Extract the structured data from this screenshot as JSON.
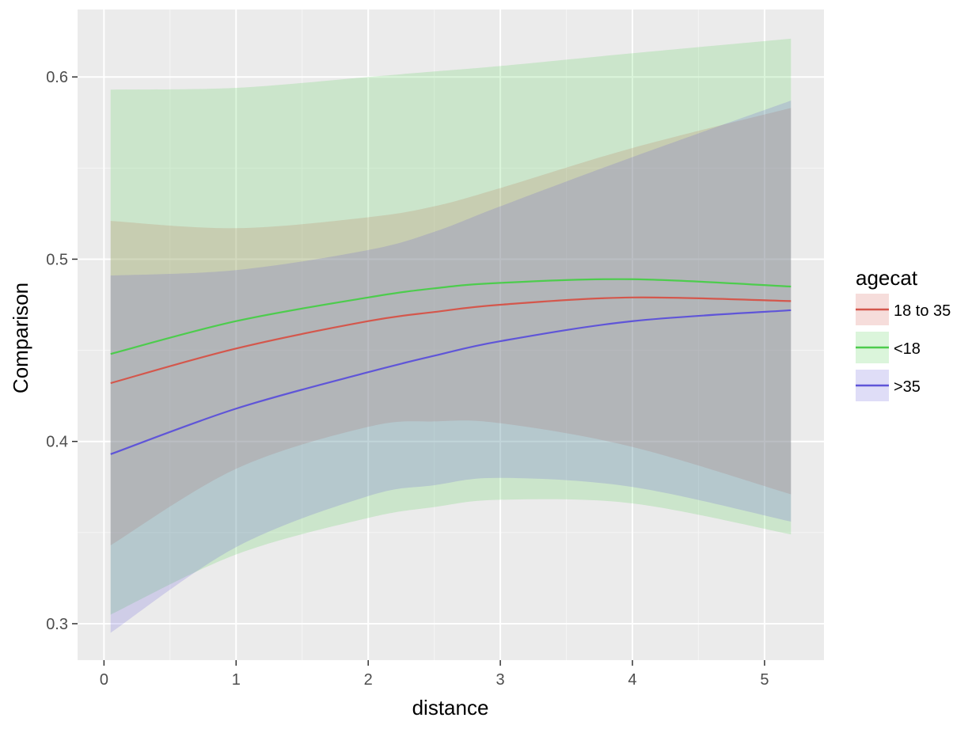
{
  "chart_data": {
    "type": "line",
    "xlabel": "distance",
    "ylabel": "Comparison",
    "xlim": [
      -0.2,
      5.45
    ],
    "ylim": [
      0.28,
      0.637
    ],
    "x_ticks": [
      0,
      1,
      2,
      3,
      4,
      5
    ],
    "x_tick_labels": [
      "0",
      "1",
      "2",
      "3",
      "4",
      "5"
    ],
    "y_ticks": [
      0.3,
      0.4,
      0.5,
      0.6
    ],
    "y_tick_labels": [
      "0.3",
      "0.4",
      "0.5",
      "0.6"
    ],
    "grid": true,
    "legend": {
      "title": "agecat",
      "placement": "right"
    },
    "x": [
      0.05,
      1,
      2,
      2.5,
      3,
      4,
      5.2
    ],
    "series": [
      {
        "name": "18 to 35",
        "color": "#d4574c",
        "values": [
          0.432,
          0.451,
          0.466,
          0.471,
          0.475,
          0.479,
          0.477
        ],
        "band_upper": [
          0.521,
          0.517,
          0.523,
          0.529,
          0.539,
          0.561,
          0.583
        ],
        "band_lower": [
          0.343,
          0.385,
          0.408,
          0.411,
          0.41,
          0.397,
          0.371
        ]
      },
      {
        "name": "<18",
        "color": "#4dcc4d",
        "values": [
          0.448,
          0.466,
          0.479,
          0.484,
          0.487,
          0.489,
          0.485
        ],
        "band_upper": [
          0.593,
          0.594,
          0.6,
          0.603,
          0.606,
          0.613,
          0.621
        ],
        "band_lower": [
          0.305,
          0.338,
          0.358,
          0.364,
          0.368,
          0.366,
          0.349
        ]
      },
      {
        "name": ">35",
        "color": "#5f55d8",
        "values": [
          0.393,
          0.418,
          0.438,
          0.447,
          0.455,
          0.466,
          0.472
        ],
        "band_upper": [
          0.491,
          0.494,
          0.505,
          0.515,
          0.529,
          0.556,
          0.587
        ],
        "band_lower": [
          0.295,
          0.342,
          0.37,
          0.376,
          0.38,
          0.375,
          0.356
        ]
      }
    ]
  }
}
